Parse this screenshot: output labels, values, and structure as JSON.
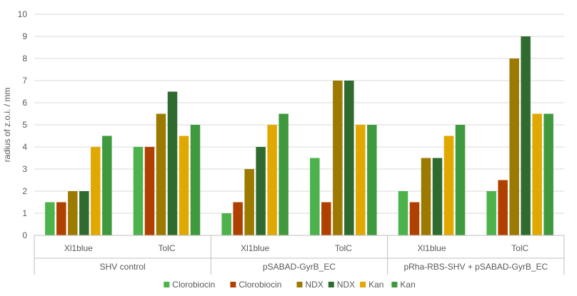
{
  "chart_data": {
    "type": "bar",
    "ylabel": "radius of z.o.i. / mm",
    "ylim": [
      0,
      10
    ],
    "yticks": [
      0,
      1,
      2,
      3,
      4,
      5,
      6,
      7,
      8,
      9,
      10
    ],
    "grid": true,
    "legend_position": "bottom",
    "groups": [
      {
        "label": "SHV control",
        "categories": [
          "Xl1blue",
          "TolC"
        ]
      },
      {
        "label": "pSABAD-GyrB_EC",
        "categories": [
          "Xl1blue",
          "TolC"
        ]
      },
      {
        "label": "pRha-RBS-SHV + pSABAD-GyrB_EC",
        "categories": [
          "Xl1blue",
          "TolC"
        ]
      }
    ],
    "series": [
      {
        "name": "Clorobiocin",
        "color": "#4cb24c",
        "values": [
          1.5,
          4,
          1,
          3.5,
          2,
          2
        ]
      },
      {
        "name": "Clorobiocin",
        "color": "#b04000",
        "values": [
          1.5,
          4,
          1.5,
          1.5,
          1.5,
          2.5
        ]
      },
      {
        "name": "NDX",
        "color": "#9c7a00",
        "values": [
          2,
          5.5,
          3,
          7,
          3.5,
          8
        ]
      },
      {
        "name": "NDX",
        "color": "#2f6b2f",
        "values": [
          2,
          6.5,
          4,
          7,
          3.5,
          9
        ]
      },
      {
        "name": "Kan",
        "color": "#e0a800",
        "values": [
          4,
          4.5,
          5,
          5,
          4.5,
          5.5
        ]
      },
      {
        "name": "Kan",
        "color": "#3f9a3f",
        "values": [
          4.5,
          5,
          5.5,
          5,
          5,
          5.5
        ]
      }
    ]
  }
}
